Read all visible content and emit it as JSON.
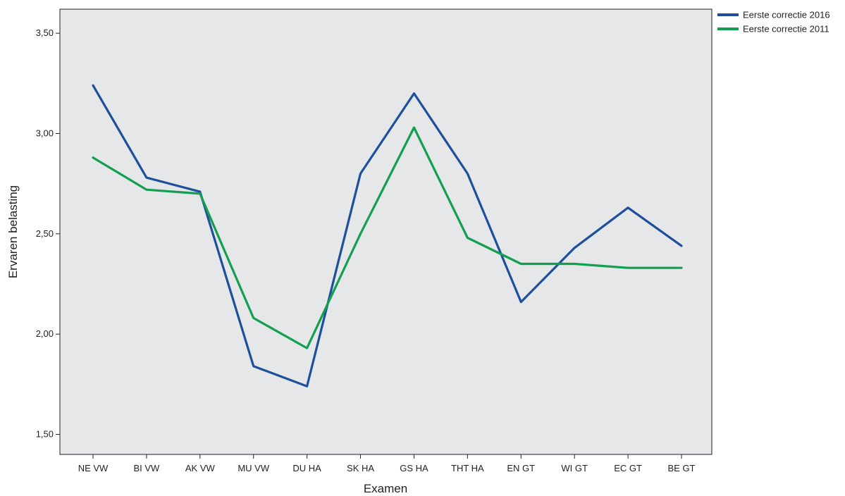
{
  "chart_data": {
    "type": "line",
    "xlabel": "Examen",
    "ylabel": "Ervaren belasting",
    "categories": [
      "NE VW",
      "BI VW",
      "AK VW",
      "MU VW",
      "DU HA",
      "SK HA",
      "GS HA",
      "THT HA",
      "EN GT",
      "WI GT",
      "EC GT",
      "BE GT"
    ],
    "ylim": [
      1.4,
      3.62
    ],
    "yticks": [
      1.5,
      2.0,
      2.5,
      3.0,
      3.5
    ],
    "ytick_labels": [
      "1,50",
      "2,00",
      "2,50",
      "3,00",
      "3,50"
    ],
    "grid": false,
    "legend_position": "top-right outside",
    "plot_background": "#e6e7e9",
    "series": [
      {
        "name": "Eerste correctie 2016",
        "color": "#1d4f9c",
        "values": [
          3.24,
          2.78,
          2.71,
          1.84,
          1.74,
          2.8,
          3.2,
          2.8,
          2.16,
          2.43,
          2.63,
          2.44
        ]
      },
      {
        "name": "Eerste correctie 2011",
        "color": "#12a050",
        "values": [
          2.88,
          2.72,
          2.7,
          2.08,
          1.93,
          2.5,
          3.03,
          2.48,
          2.35,
          2.35,
          2.33,
          2.33
        ]
      }
    ]
  }
}
